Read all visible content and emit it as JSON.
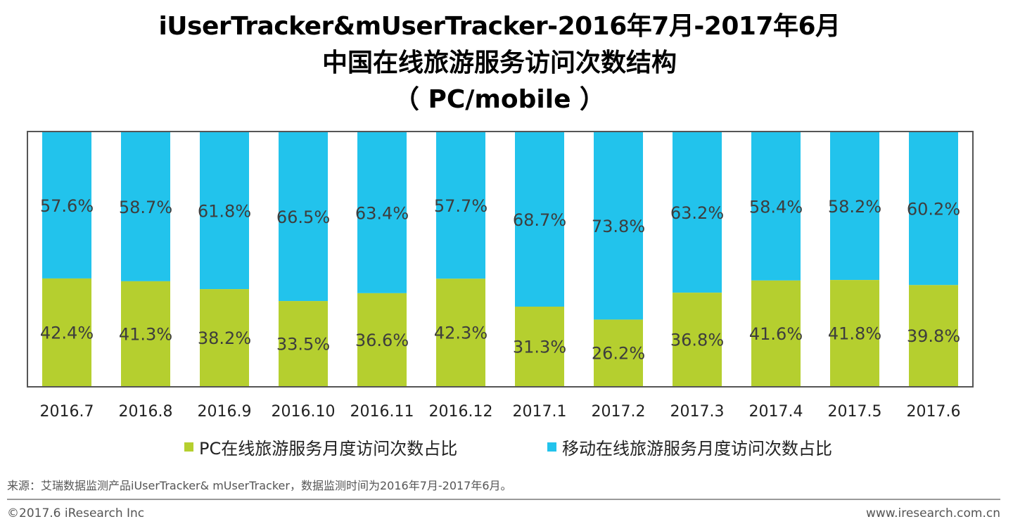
{
  "title": {
    "line1": "iUserTracker&mUserTracker-2016年7月-2017年6月",
    "line2": "中国在线旅游服务访问次数结构",
    "line3": "（ PC/mobile ）"
  },
  "colors": {
    "pc": "#b5cf2f",
    "mobile": "#22c3ec",
    "frame": "#555555",
    "label_text": "#3d3d3d"
  },
  "chart_data": {
    "type": "bar",
    "stacked": "percent",
    "categories": [
      "2016.7",
      "2016.8",
      "2016.9",
      "2016.10",
      "2016.11",
      "2016.12",
      "2017.1",
      "2017.2",
      "2017.3",
      "2017.4",
      "2017.5",
      "2017.6"
    ],
    "series": [
      {
        "name": "PC在线旅游服务月度访问次数占比",
        "key": "pc",
        "values": [
          42.4,
          41.3,
          38.2,
          33.5,
          36.6,
          42.3,
          31.3,
          26.2,
          36.8,
          41.6,
          41.8,
          39.8
        ],
        "labels": [
          "42.4%",
          "41.3%",
          "38.2%",
          "33.5%",
          "36.6%",
          "42.3%",
          "31.3%",
          "26.2%",
          "36.8%",
          "41.6%",
          "41.8%",
          "39.8%"
        ]
      },
      {
        "name": "移动在线旅游服务月度访问次数占比",
        "key": "mobile",
        "values": [
          57.6,
          58.7,
          61.8,
          66.5,
          63.4,
          57.7,
          68.7,
          73.8,
          63.2,
          58.4,
          58.2,
          60.2
        ],
        "labels": [
          "57.6%",
          "58.7%",
          "61.8%",
          "66.5%",
          "63.4%",
          "57.7%",
          "68.7%",
          "73.8%",
          "63.2%",
          "58.4%",
          "58.2%",
          "60.2%"
        ]
      }
    ],
    "ylim": [
      0,
      100
    ],
    "grid": false,
    "legend_position": "bottom"
  },
  "legend": {
    "pc_label": "PC在线旅游服务月度访问次数占比",
    "mobile_label": "移动在线旅游服务月度访问次数占比"
  },
  "footer": {
    "source": "来源：艾瑞数据监测产品iUserTracker& mUserTracker，数据监测时间为2016年7月-2017年6月。",
    "copyright": "©2017.6 iResearch Inc",
    "website": "www.iresearch.com.cn"
  }
}
